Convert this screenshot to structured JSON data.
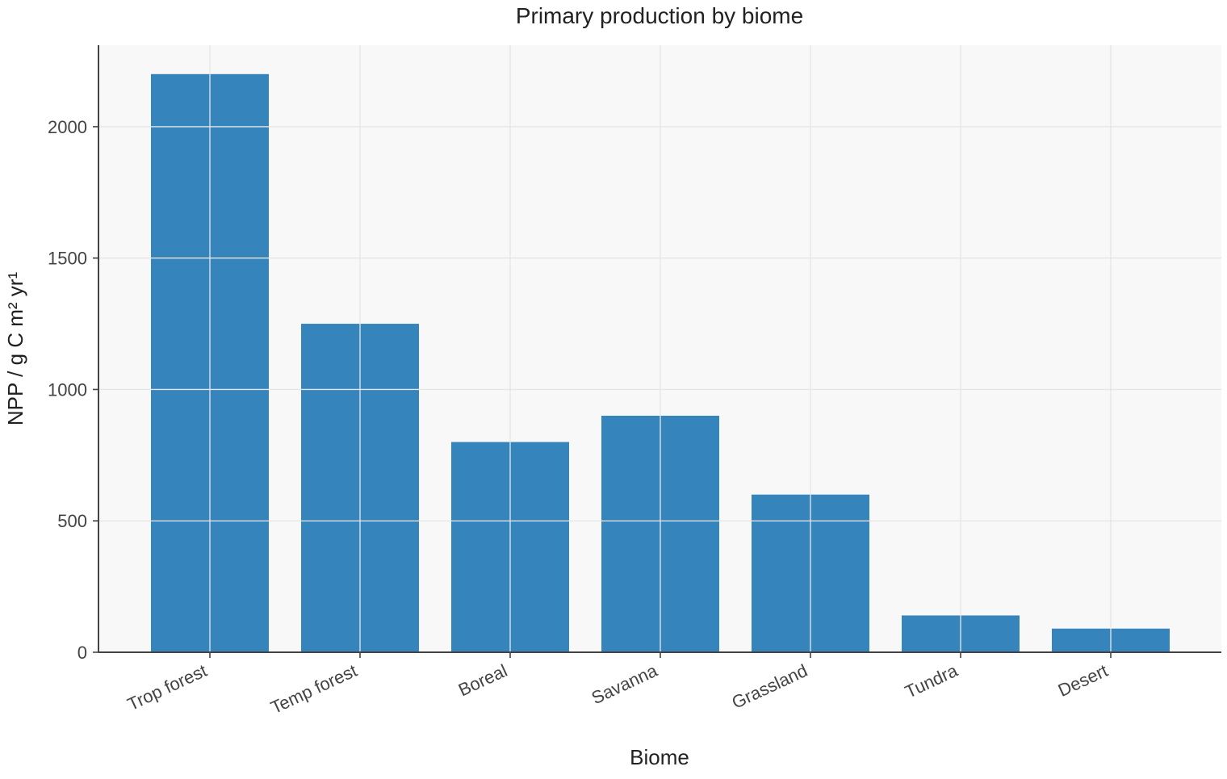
{
  "chart_data": {
    "type": "bar",
    "title": "Primary production by biome",
    "xlabel": "Biome",
    "ylabel": "NPP / g C m² yr¹",
    "categories": [
      "Trop forest",
      "Temp forest",
      "Boreal",
      "Savanna",
      "Grassland",
      "Tundra",
      "Desert"
    ],
    "values": [
      2200,
      1250,
      800,
      900,
      600,
      140,
      90
    ],
    "ylim": [
      0,
      2310
    ],
    "yticks": [
      0,
      500,
      1000,
      1500,
      2000
    ],
    "grid": true,
    "legend": "none",
    "colors": {
      "bar": "#3684bc",
      "plot_background": "#f8f8f8",
      "grid": "#e6e6e6",
      "axis": "#444444"
    }
  }
}
